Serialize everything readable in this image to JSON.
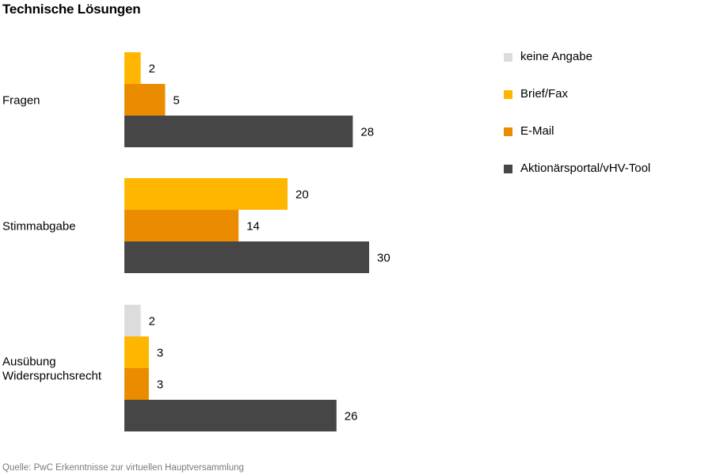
{
  "title": "Technische Lösungen",
  "source": "Quelle: PwC Erkenntnisse zur virtuellen Hauptversammlung",
  "colors": {
    "keine_angabe": "#dcdcdc",
    "brief_fax": "#ffb600",
    "email": "#eb8c00",
    "portal": "#464646"
  },
  "legend": [
    {
      "label": "keine Angabe",
      "color": "#dcdcdc"
    },
    {
      "label": "Brief/Fax",
      "color": "#ffb600"
    },
    {
      "label": "E-Mail",
      "color": "#eb8c00"
    },
    {
      "label": "Aktionärsportal/vHV-Tool",
      "color": "#464646"
    }
  ],
  "chart_data": {
    "type": "bar",
    "orientation": "horizontal",
    "title": "Technische Lösungen",
    "categories": [
      "Fragen",
      "Stimmabgabe",
      "Ausübung Widerspruchsrecht"
    ],
    "category_lines": [
      [
        "Fragen"
      ],
      [
        "Stimmabgabe"
      ],
      [
        "Ausübung",
        "Widerspruchsrecht"
      ]
    ],
    "series": [
      {
        "name": "keine Angabe",
        "color": "#dcdcdc",
        "values": [
          null,
          null,
          2
        ]
      },
      {
        "name": "Brief/Fax",
        "color": "#ffb600",
        "values": [
          2,
          20,
          3
        ]
      },
      {
        "name": "E-Mail",
        "color": "#eb8c00",
        "values": [
          5,
          14,
          3
        ]
      },
      {
        "name": "Aktionärsportal/vHV-Tool",
        "color": "#464646",
        "values": [
          28,
          30,
          26
        ]
      }
    ],
    "xlim": [
      0,
      30
    ],
    "grid": false,
    "legend_position": "right"
  }
}
